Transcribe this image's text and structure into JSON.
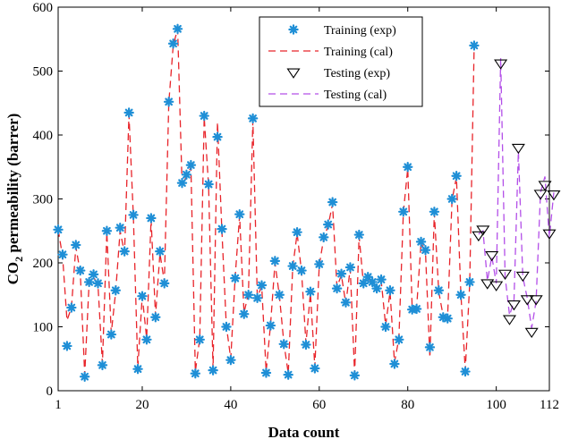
{
  "chart_data": {
    "type": "line",
    "title": "",
    "xlabel": "Data count",
    "ylabel_main": "CO",
    "ylabel_sub": "2",
    "ylabel_rest": " permeability (barrer)",
    "xlim": [
      1,
      112
    ],
    "ylim": [
      0,
      600
    ],
    "xticks": [
      1,
      20,
      40,
      60,
      80,
      100,
      112
    ],
    "yticks": [
      0,
      100,
      200,
      300,
      400,
      500,
      600
    ],
    "colors": {
      "training_marker": "#1f8fd6",
      "training_line": "#e8242a",
      "testing_marker": "#000000",
      "testing_line": "#b34fe8"
    },
    "legend": {
      "position": "top-right-inside",
      "entries": [
        {
          "label": "Training (exp)",
          "style": "star-marker"
        },
        {
          "label": "Training (cal)",
          "style": "dashed-red"
        },
        {
          "label": "Testing (exp)",
          "style": "triangle-marker"
        },
        {
          "label": "Testing (cal)",
          "style": "dashed-purple"
        }
      ]
    },
    "series": [
      {
        "name": "Training",
        "x": [
          1,
          2,
          3,
          4,
          5,
          6,
          7,
          8,
          9,
          10,
          11,
          12,
          13,
          14,
          15,
          16,
          17,
          18,
          19,
          20,
          21,
          22,
          23,
          24,
          25,
          26,
          27,
          28,
          29,
          30,
          31,
          32,
          33,
          34,
          35,
          36,
          37,
          38,
          39,
          40,
          41,
          42,
          43,
          44,
          45,
          46,
          47,
          48,
          49,
          50,
          51,
          52,
          53,
          54,
          55,
          56,
          57,
          58,
          59,
          60,
          61,
          62,
          63,
          64,
          65,
          66,
          67,
          68,
          69,
          70,
          71,
          72,
          73,
          74,
          75,
          76,
          77,
          78,
          79,
          80,
          81,
          82,
          83,
          84,
          85,
          86,
          87,
          88,
          89,
          90,
          91,
          92,
          93,
          94,
          95
        ],
        "exp": [
          252,
          213,
          70,
          130,
          228,
          188,
          22,
          170,
          182,
          168,
          40,
          250,
          88,
          157,
          255,
          218,
          435,
          275,
          34,
          148,
          80,
          270,
          115,
          218,
          168,
          452,
          543,
          566,
          325,
          338,
          353,
          27,
          80,
          430,
          323,
          32,
          397,
          253,
          100,
          48,
          176,
          276,
          120,
          150,
          426,
          145,
          165,
          28,
          102,
          203,
          150,
          73,
          25,
          195,
          248,
          188,
          72,
          155,
          35,
          198,
          240,
          260,
          295,
          160,
          183,
          138,
          193,
          24,
          244,
          168,
          178,
          170,
          160,
          174,
          100,
          157,
          42,
          80,
          280,
          350,
          127,
          128,
          233,
          220,
          68,
          280,
          157,
          115,
          113,
          300,
          336,
          150,
          30,
          170,
          540
        ],
        "cal": [
          252,
          210,
          110,
          130,
          225,
          185,
          25,
          170,
          178,
          165,
          42,
          248,
          90,
          155,
          250,
          215,
          432,
          272,
          36,
          148,
          82,
          268,
          117,
          215,
          170,
          450,
          540,
          566,
          322,
          335,
          350,
          30,
          82,
          428,
          320,
          34,
          420,
          250,
          102,
          50,
          178,
          274,
          122,
          152,
          423,
          147,
          163,
          30,
          104,
          200,
          148,
          75,
          27,
          193,
          246,
          186,
          74,
          153,
          37,
          196,
          238,
          258,
          292,
          162,
          181,
          136,
          191,
          26,
          242,
          166,
          176,
          168,
          158,
          172,
          102,
          155,
          44,
          82,
          278,
          348,
          129,
          130,
          231,
          218,
          52,
          278,
          155,
          117,
          115,
          298,
          334,
          152,
          32,
          168,
          538
        ]
      },
      {
        "name": "Testing",
        "x": [
          96,
          97,
          98,
          99,
          100,
          101,
          102,
          103,
          104,
          105,
          106,
          107,
          108,
          109,
          110,
          111,
          112,
          113
        ],
        "exp": [
          243,
          252,
          168,
          212,
          165,
          512,
          183,
          112,
          135,
          380,
          180,
          143,
          92,
          143,
          308,
          322,
          246,
          307
        ],
        "cal": [
          245,
          250,
          172,
          210,
          168,
          520,
          178,
          118,
          140,
          375,
          178,
          145,
          98,
          140,
          310,
          335,
          240,
          310
        ]
      }
    ]
  }
}
